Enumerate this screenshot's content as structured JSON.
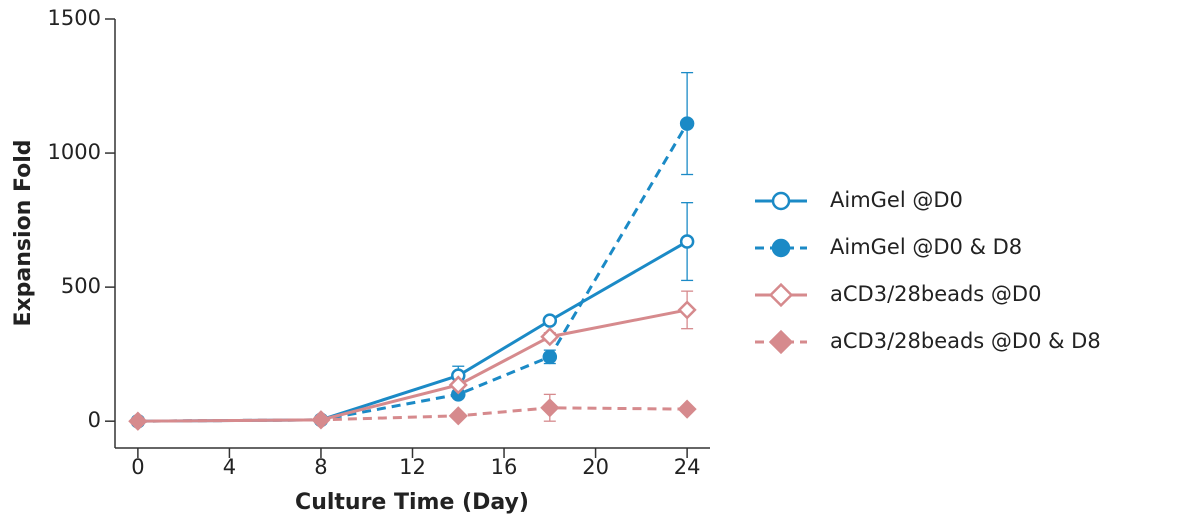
{
  "chart_data": {
    "type": "line",
    "x_label": "Culture Time (Day)",
    "y_label": "Expansion Fold",
    "x": [
      0,
      8,
      14,
      18,
      24
    ],
    "series": [
      {
        "name": "AimGel @D0",
        "color": "#1b8ac6",
        "dashed": false,
        "marker": "circle",
        "filled": false,
        "values": [
          0,
          5,
          170,
          375,
          670
        ],
        "errors": [
          0,
          2,
          35,
          10,
          145
        ]
      },
      {
        "name": "AimGel @D0 & D8",
        "color": "#1b8ac6",
        "dashed": true,
        "marker": "circle",
        "filled": true,
        "values": [
          0,
          5,
          100,
          240,
          1110
        ],
        "errors": [
          0,
          2,
          10,
          25,
          190
        ]
      },
      {
        "name": "aCD3/28beads @D0",
        "color": "#d68a8d",
        "dashed": false,
        "marker": "diamond",
        "filled": false,
        "values": [
          0,
          5,
          135,
          315,
          415
        ],
        "errors": [
          0,
          2,
          10,
          15,
          70
        ]
      },
      {
        "name": "aCD3/28beads @D0 & D8",
        "color": "#d68a8d",
        "dashed": true,
        "marker": "diamond",
        "filled": true,
        "values": [
          0,
          5,
          20,
          50,
          45
        ],
        "errors": [
          0,
          2,
          10,
          50,
          5
        ]
      }
    ],
    "xlim": [
      -1,
      25
    ],
    "xticks": [
      0,
      4,
      8,
      12,
      16,
      20,
      24
    ],
    "ylim": [
      -100,
      1500
    ],
    "yticks": [
      0,
      500,
      1000,
      1500
    ],
    "grid": false,
    "legend": "right"
  }
}
